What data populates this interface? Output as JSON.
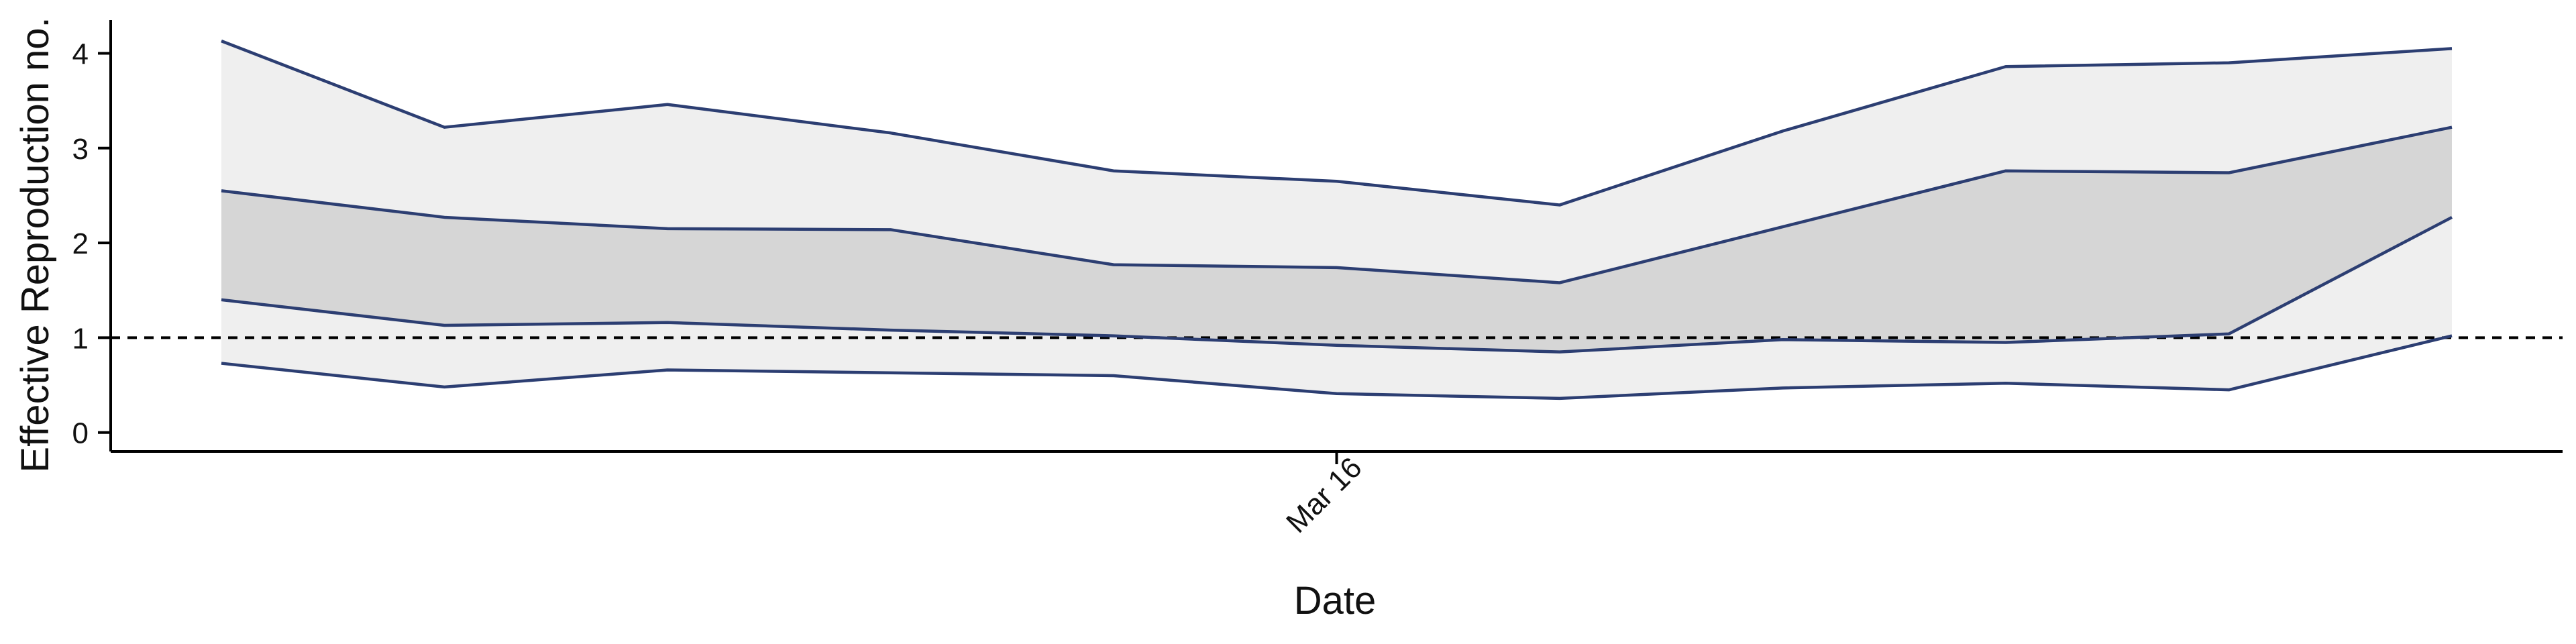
{
  "chart_data": {
    "type": "area",
    "title": "",
    "xlabel": "Date",
    "ylabel": "Effective Reproduction no.",
    "x": [
      "2020-03-11",
      "2020-03-12",
      "2020-03-13",
      "2020-03-14",
      "2020-03-15",
      "2020-03-16",
      "2020-03-17",
      "2020-03-18",
      "2020-03-19",
      "2020-03-20",
      "2020-03-21"
    ],
    "x_tick_labels": [
      {
        "x": "2020-03-16",
        "label": "Mar 16"
      }
    ],
    "ylim": [
      -0.2,
      4.35
    ],
    "y_ticks": [
      0,
      1,
      2,
      3,
      4
    ],
    "reference_line": {
      "y": 1,
      "style": "dashed"
    },
    "grid": false,
    "legend": "none",
    "series": [
      {
        "values": [
          4.13,
          3.22,
          3.46,
          3.16,
          2.76,
          2.65,
          2.4,
          3.18,
          3.86,
          3.9,
          4.05
        ]
      },
      {
        "values": [
          2.55,
          2.27,
          2.15,
          2.14,
          1.77,
          1.74,
          1.58,
          2.17,
          2.76,
          2.74,
          3.22
        ]
      },
      {
        "values": [
          1.4,
          1.13,
          1.16,
          1.08,
          1.02,
          0.92,
          0.85,
          0.98,
          0.95,
          1.04,
          2.27
        ]
      },
      {
        "values": [
          0.73,
          0.48,
          0.66,
          0.63,
          0.6,
          0.41,
          0.36,
          0.47,
          0.52,
          0.45,
          1.02
        ]
      }
    ],
    "colors": {
      "line": "#2c3e72",
      "outer_band": "#efefef",
      "inner_band": "#d6d6d6",
      "reference": "#000000",
      "axis": "#000000"
    }
  }
}
